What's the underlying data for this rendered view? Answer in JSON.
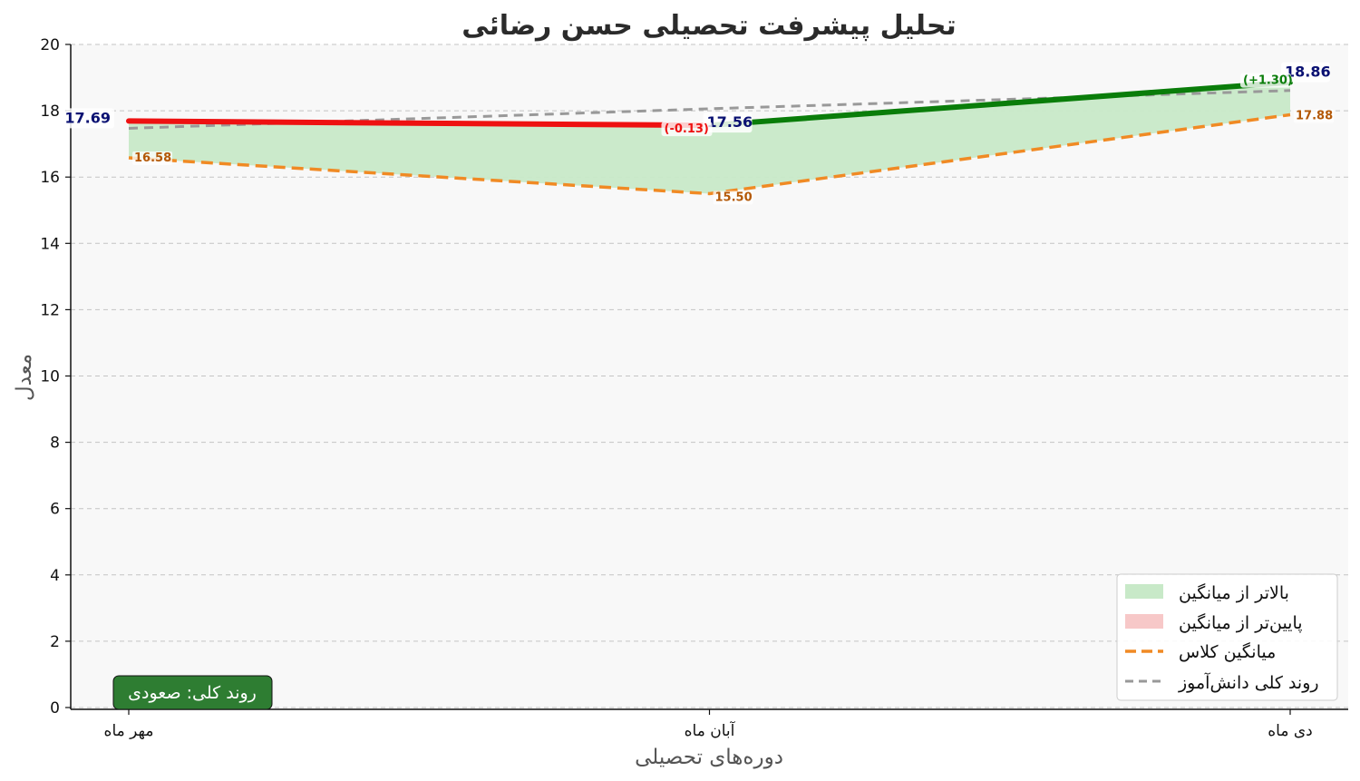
{
  "chart_data": {
    "type": "line",
    "title": "تحلیل پیشرفت تحصیلی حسن رضائی",
    "xlabel": "دوره‌های تحصیلی",
    "ylabel": "معدل",
    "categories": [
      "مهر ماه",
      "آبان ماه",
      "دی ماه"
    ],
    "ylim": [
      0,
      20
    ],
    "yticks": [
      0,
      2,
      4,
      6,
      8,
      10,
      12,
      14,
      16,
      18,
      20
    ],
    "grid": true,
    "student": {
      "values": [
        17.69,
        17.56,
        18.86
      ],
      "labels": [
        "17.69",
        "17.56",
        "18.86"
      ],
      "segment_colors": [
        "#ee1111",
        "#0a7d0a"
      ]
    },
    "changes": [
      {
        "label": "(-0.13)",
        "color": "#ee1111"
      },
      {
        "label": "(+1.30)",
        "color": "#0a7d0a"
      }
    ],
    "class_average": {
      "name": "میانگین کلاس",
      "values": [
        16.58,
        15.5,
        17.88
      ],
      "labels": [
        "16.58",
        "15.50",
        "17.88"
      ],
      "color": "#f08a24"
    },
    "trend": {
      "name": "روند کلی دانش‌آموز",
      "values": [
        17.47,
        18.06,
        18.61
      ],
      "color": "#999999"
    },
    "fill_above": {
      "name": "بالاتر از میانگین",
      "color": "#c8e9c8"
    },
    "fill_below": {
      "name": "پایین‌تر از میانگین",
      "color": "#f7c8c8"
    },
    "legend_position": "bottom-right",
    "annotation": {
      "text": "روند کلی: صعودی",
      "color": "#2e7d32"
    }
  }
}
